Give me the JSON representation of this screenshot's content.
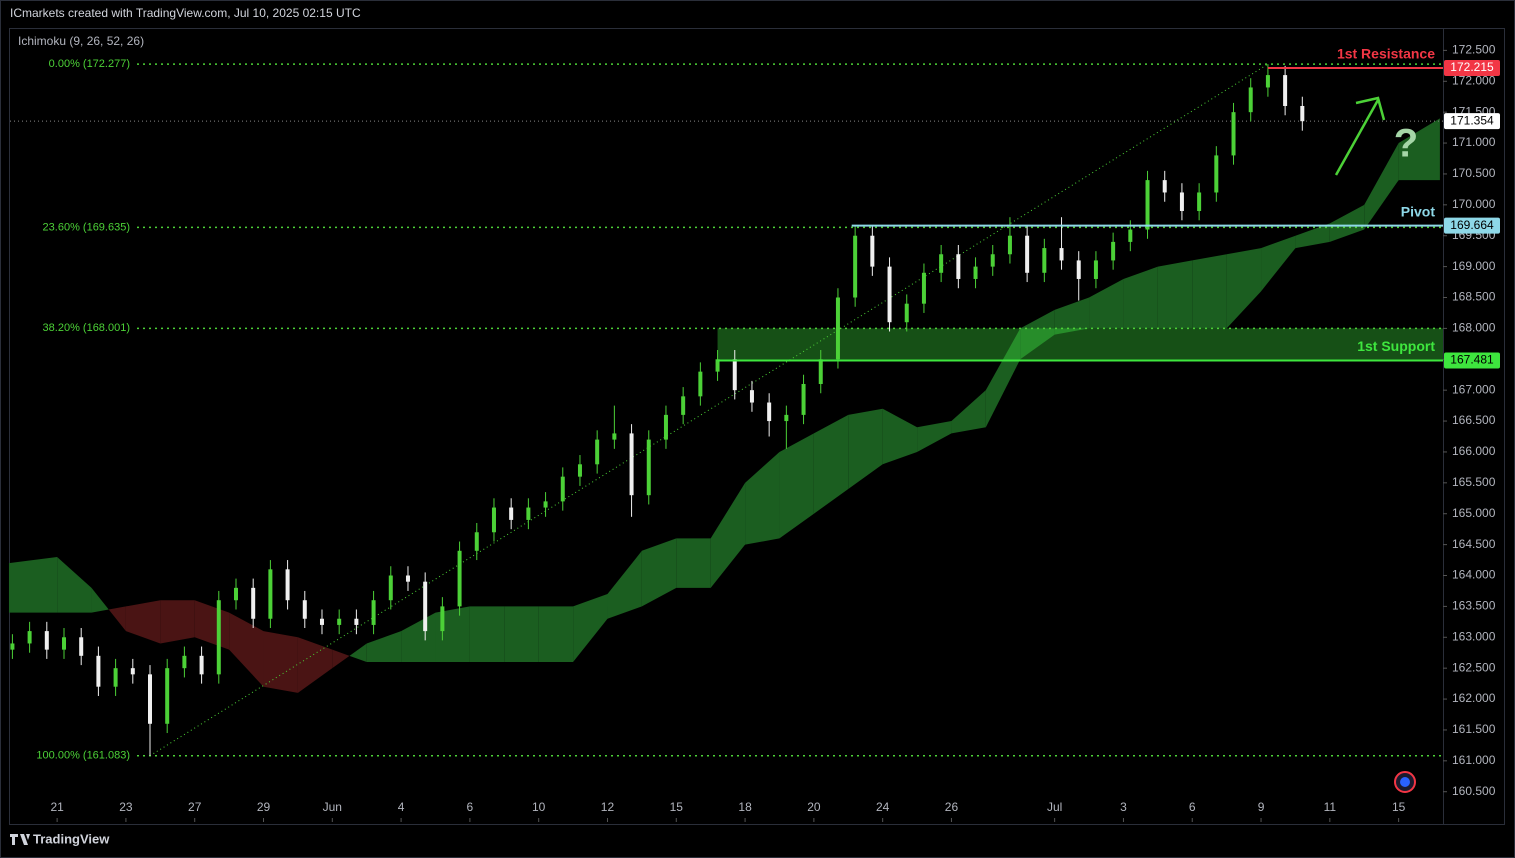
{
  "chart_data": {
    "type": "candlestick",
    "header": "ICmarkets created with TradingView.com, Jul 10, 2025 02:15 UTC",
    "indicator": "Ichimoku (9, 26, 52, 26)",
    "footer": "TradingView",
    "annotation": "?",
    "up_color": "#4cd137",
    "down_color": "#f0f0f0",
    "x": [
      -1.3,
      -0.8,
      -0.3,
      0.2,
      0.7,
      1.2,
      1.7,
      2.2,
      2.7,
      3.2,
      3.7,
      4.2,
      4.7,
      5.2,
      5.7,
      6.2,
      6.7,
      7.2,
      7.7,
      8.2,
      8.7,
      9.2,
      9.7,
      10.2,
      10.7,
      11.2,
      11.7,
      12.2,
      12.7,
      13.2,
      13.7,
      14.2,
      14.7,
      15.2,
      15.7,
      16.2,
      16.7,
      17.2,
      17.7,
      18.2,
      18.7,
      19.2,
      19.7,
      20.2,
      20.7,
      21.2,
      21.7,
      22.2,
      22.7,
      23.2,
      23.7,
      24.2,
      24.7,
      25.2,
      25.7,
      26.2,
      26.7,
      27.2,
      27.7,
      28.2,
      28.7,
      29.2,
      29.7,
      30.2,
      30.7,
      31.2,
      31.7,
      32.2,
      32.7,
      33.2,
      33.7,
      34.2,
      34.7,
      35.2,
      35.7,
      36.2
    ],
    "open": [
      162.8,
      162.9,
      163.1,
      162.8,
      163.0,
      162.7,
      162.2,
      162.5,
      162.4,
      161.6,
      162.5,
      162.7,
      162.4,
      163.6,
      163.8,
      163.3,
      164.1,
      163.6,
      163.3,
      163.2,
      163.3,
      163.2,
      163.6,
      164.0,
      163.9,
      163.1,
      163.5,
      164.4,
      164.7,
      165.1,
      164.9,
      165.1,
      165.2,
      165.6,
      165.8,
      166.2,
      166.3,
      165.3,
      166.2,
      166.6,
      166.9,
      167.3,
      167.5,
      167.0,
      166.8,
      166.5,
      166.6,
      167.1,
      167.5,
      168.5,
      169.5,
      169.0,
      168.1,
      168.4,
      168.9,
      169.2,
      168.8,
      169.0,
      169.2,
      169.5,
      168.9,
      169.3,
      169.1,
      168.8,
      169.1,
      169.4,
      169.6,
      170.4,
      170.2,
      169.9,
      170.2,
      170.8,
      171.5,
      171.9,
      172.1,
      171.6
    ],
    "high": [
      163.05,
      163.25,
      163.25,
      163.15,
      163.15,
      162.85,
      162.65,
      162.65,
      162.55,
      162.65,
      162.85,
      162.85,
      163.75,
      163.95,
      163.95,
      164.25,
      164.25,
      163.75,
      163.45,
      163.45,
      163.45,
      163.75,
      164.15,
      164.15,
      164.05,
      163.65,
      164.55,
      164.85,
      165.25,
      165.25,
      165.25,
      165.35,
      165.75,
      165.95,
      166.35,
      166.75,
      166.45,
      166.35,
      166.75,
      167.05,
      167.45,
      167.65,
      167.65,
      167.15,
      166.95,
      166.75,
      167.25,
      167.65,
      168.65,
      169.65,
      169.65,
      169.15,
      168.55,
      169.05,
      169.35,
      169.35,
      169.15,
      169.35,
      169.8,
      169.65,
      169.45,
      169.8,
      169.25,
      169.25,
      169.55,
      169.75,
      170.55,
      170.55,
      170.35,
      170.35,
      170.95,
      171.65,
      172.05,
      172.277,
      172.25,
      171.75
    ],
    "low": [
      162.65,
      162.75,
      162.65,
      162.65,
      162.55,
      162.05,
      162.05,
      162.25,
      161.083,
      161.45,
      162.35,
      162.25,
      162.25,
      163.45,
      163.15,
      163.15,
      163.45,
      163.15,
      163.05,
      163.05,
      163.05,
      163.05,
      163.45,
      163.75,
      162.95,
      162.95,
      163.35,
      164.25,
      164.55,
      164.75,
      164.75,
      164.95,
      165.05,
      165.45,
      165.65,
      166.05,
      164.95,
      165.15,
      166.05,
      166.45,
      166.75,
      167.15,
      166.85,
      166.65,
      166.25,
      166.05,
      166.45,
      166.95,
      167.35,
      168.35,
      168.85,
      167.95,
      167.95,
      168.25,
      168.75,
      168.65,
      168.65,
      168.85,
      169.05,
      168.75,
      168.75,
      168.95,
      168.45,
      168.65,
      168.95,
      169.25,
      169.45,
      170.05,
      169.75,
      169.75,
      170.05,
      170.65,
      171.35,
      171.75,
      171.45,
      171.2
    ],
    "close": [
      162.9,
      163.1,
      162.8,
      163.0,
      162.7,
      162.2,
      162.5,
      162.4,
      161.6,
      162.5,
      162.7,
      162.4,
      163.6,
      163.8,
      163.3,
      164.1,
      163.6,
      163.3,
      163.2,
      163.3,
      163.2,
      163.6,
      164.0,
      163.9,
      163.1,
      163.5,
      164.4,
      164.7,
      165.1,
      164.9,
      165.1,
      165.2,
      165.6,
      165.8,
      166.2,
      166.3,
      165.3,
      166.2,
      166.6,
      166.9,
      167.3,
      167.5,
      167.0,
      166.8,
      166.5,
      166.6,
      167.1,
      167.5,
      168.5,
      169.5,
      169.0,
      168.1,
      168.4,
      168.9,
      169.2,
      168.8,
      169.0,
      169.2,
      169.5,
      168.9,
      169.3,
      169.1,
      168.8,
      169.1,
      169.4,
      169.6,
      170.4,
      170.2,
      169.9,
      170.2,
      170.8,
      171.5,
      171.9,
      172.1,
      171.6,
      171.354
    ],
    "cloud": {
      "bull_color": "#1b5e20",
      "bear_color": "#4a1414",
      "x": [
        -1.4,
        0,
        1,
        2,
        3,
        4,
        5,
        6,
        7,
        8,
        9,
        10,
        11,
        12,
        13,
        14,
        15,
        16,
        17,
        18,
        19,
        20,
        21,
        22,
        23,
        24,
        25,
        26,
        27,
        28,
        29,
        30,
        31,
        32,
        33,
        34,
        35,
        36,
        37,
        38,
        39,
        40.2
      ],
      "span_a": [
        164.2,
        164.3,
        163.8,
        163.1,
        162.9,
        163.0,
        162.8,
        162.2,
        162.1,
        162.5,
        162.9,
        163.1,
        163.4,
        163.5,
        163.5,
        163.5,
        163.5,
        163.7,
        164.4,
        164.6,
        164.6,
        165.5,
        166.0,
        166.3,
        166.6,
        166.7,
        166.4,
        166.5,
        167.0,
        168.0,
        168.3,
        168.5,
        168.8,
        169.0,
        169.1,
        169.2,
        169.3,
        169.5,
        169.7,
        170.0,
        171.0,
        171.4
      ],
      "span_b": [
        163.4,
        163.4,
        163.4,
        163.5,
        163.6,
        163.6,
        163.4,
        163.1,
        163.0,
        162.8,
        162.6,
        162.6,
        162.6,
        162.6,
        162.6,
        162.6,
        162.6,
        163.3,
        163.5,
        163.8,
        163.8,
        164.5,
        164.6,
        165.0,
        165.4,
        165.8,
        166.0,
        166.3,
        166.4,
        167.5,
        167.9,
        168.0,
        168.0,
        168.0,
        168.0,
        168.0,
        168.6,
        169.3,
        169.4,
        169.6,
        170.4,
        170.4
      ]
    },
    "fib": {
      "start_x": 2.7,
      "end_x": 35.2,
      "color": "#4cd137",
      "levels": [
        {
          "value": 172.277,
          "label": "0.00% (172.277)"
        },
        {
          "value": 169.635,
          "label": "23.60% (169.635)"
        },
        {
          "value": 168.001,
          "label": "38.20% (168.001)"
        },
        {
          "value": 161.083,
          "label": "100.00% (161.083)"
        }
      ]
    },
    "resistance": {
      "name": "1st Resistance",
      "value": 172.215,
      "from_x": 35.2,
      "color": "#f23645"
    },
    "pivot": {
      "name": "Pivot",
      "value": 169.664,
      "from_x": 23.1,
      "color": "#8ed8e8"
    },
    "support": {
      "name": "1st Support",
      "value": 167.481,
      "zone_top": 168.0,
      "from_x": 19.2,
      "color": "#3ee63e"
    },
    "last_price": 171.354,
    "xlim": [
      -1.37,
      40.29
    ],
    "ylim": [
      160.01,
      172.83
    ],
    "xticks": [
      {
        "value": 0,
        "label": "21"
      },
      {
        "value": 2,
        "label": "23"
      },
      {
        "value": 4,
        "label": "27"
      },
      {
        "value": 6,
        "label": "29"
      },
      {
        "value": 8,
        "label": "Jun"
      },
      {
        "value": 10,
        "label": "4"
      },
      {
        "value": 12,
        "label": "6"
      },
      {
        "value": 14,
        "label": "10"
      },
      {
        "value": 16,
        "label": "12"
      },
      {
        "value": 18,
        "label": "15"
      },
      {
        "value": 20,
        "label": "18"
      },
      {
        "value": 22,
        "label": "20"
      },
      {
        "value": 24,
        "label": "24"
      },
      {
        "value": 26,
        "label": "26"
      },
      {
        "value": 29,
        "label": "Jul"
      },
      {
        "value": 31,
        "label": "3"
      },
      {
        "value": 33,
        "label": "6"
      },
      {
        "value": 35,
        "label": "9"
      },
      {
        "value": 37,
        "label": "11"
      },
      {
        "value": 39,
        "label": "15"
      }
    ],
    "yticks": [
      {
        "value": 160.5,
        "label": "160.500"
      },
      {
        "value": 161,
        "label": "161.000"
      },
      {
        "value": 161.5,
        "label": "161.500"
      },
      {
        "value": 162,
        "label": "162.000"
      },
      {
        "value": 162.5,
        "label": "162.500"
      },
      {
        "value": 163,
        "label": "163.000"
      },
      {
        "value": 163.5,
        "label": "163.500"
      },
      {
        "value": 164,
        "label": "164.000"
      },
      {
        "value": 164.5,
        "label": "164.500"
      },
      {
        "value": 165,
        "label": "165.000"
      },
      {
        "value": 165.5,
        "label": "165.500"
      },
      {
        "value": 166,
        "label": "166.000"
      },
      {
        "value": 166.5,
        "label": "166.500"
      },
      {
        "value": 167,
        "label": "167.000"
      },
      {
        "value": 167.5,
        "label": "167.500"
      },
      {
        "value": 168,
        "label": "168.000"
      },
      {
        "value": 168.5,
        "label": "168.500"
      },
      {
        "value": 169,
        "label": "169.000"
      },
      {
        "value": 169.5,
        "label": "169.500"
      },
      {
        "value": 170,
        "label": "170.000"
      },
      {
        "value": 170.5,
        "label": "170.500"
      },
      {
        "value": 171,
        "label": "171.000"
      },
      {
        "value": 171.5,
        "label": "171.500"
      },
      {
        "value": 172,
        "label": "172.000"
      },
      {
        "value": 172.5,
        "label": "172.500"
      }
    ]
  }
}
